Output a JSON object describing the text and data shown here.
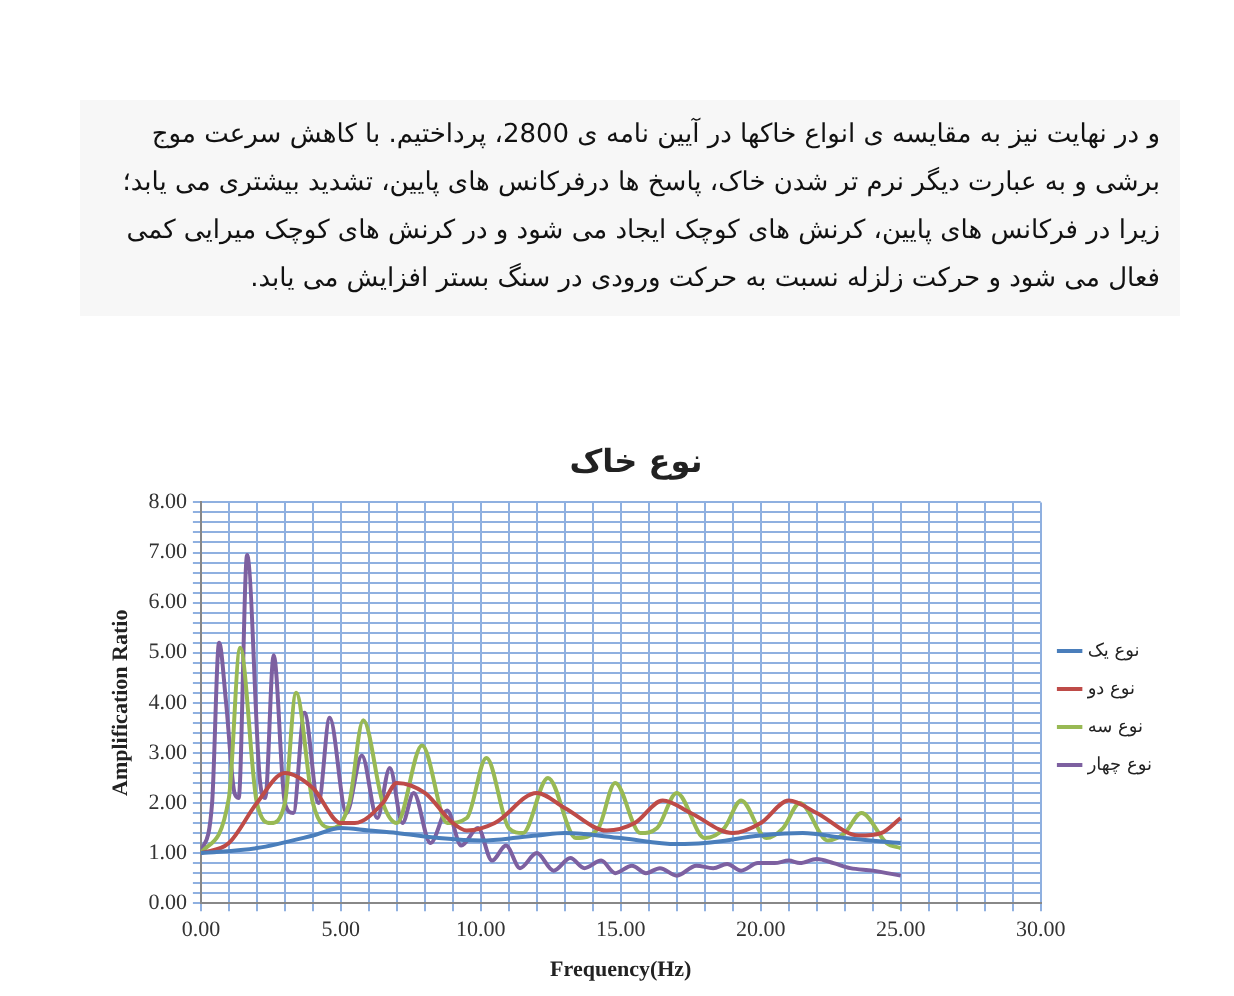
{
  "chart_data": {
    "type": "line",
    "title": "نوع خاک",
    "xlabel": "Frequency(Hz)",
    "ylabel": "Amplification Ratio",
    "annotations": [
      "و در نهایت نیز به مقایسه ی انواع خاکها در آیین نامه ی 2800، پرداختیم. با کاهش سرعت موج برشی و به عبارت دیگر نرم تر شدن خاک، پاسخ ها درفرکانس های پایین، تشدید بیشتری می یابد؛ زیرا در فرکانس های پایین، کرنش های کوچک ایجاد می شود و در کرنش های کوچک میرایی کمی فعال می شود و حرکت زلزله نسبت به حرکت ورودی در سنگ بستر افزایش می یابد."
    ],
    "xlim": [
      0,
      30
    ],
    "ylim": [
      0,
      8
    ],
    "xticks": [
      {
        "value": 0,
        "label": "0.00"
      },
      {
        "value": 1,
        "label": null
      },
      {
        "value": 2,
        "label": null
      },
      {
        "value": 3,
        "label": null
      },
      {
        "value": 4,
        "label": null
      },
      {
        "value": 5,
        "label": "5.00"
      },
      {
        "value": 6,
        "label": null
      },
      {
        "value": 7,
        "label": null
      },
      {
        "value": 8,
        "label": null
      },
      {
        "value": 9,
        "label": null
      },
      {
        "value": 10,
        "label": "10.00"
      },
      {
        "value": 11,
        "label": null
      },
      {
        "value": 12,
        "label": null
      },
      {
        "value": 13,
        "label": null
      },
      {
        "value": 14,
        "label": null
      },
      {
        "value": 15,
        "label": "15.00"
      },
      {
        "value": 16,
        "label": null
      },
      {
        "value": 17,
        "label": null
      },
      {
        "value": 18,
        "label": null
      },
      {
        "value": 19,
        "label": null
      },
      {
        "value": 20,
        "label": "20.00"
      },
      {
        "value": 21,
        "label": null
      },
      {
        "value": 22,
        "label": null
      },
      {
        "value": 23,
        "label": null
      },
      {
        "value": 24,
        "label": null
      },
      {
        "value": 25,
        "label": "25.00"
      },
      {
        "value": 26,
        "label": null
      },
      {
        "value": 27,
        "label": null
      },
      {
        "value": 28,
        "label": null
      },
      {
        "value": 29,
        "label": null
      },
      {
        "value": 30,
        "label": "30.00"
      }
    ],
    "yticks": [
      {
        "value": 0,
        "label": "0.00"
      },
      {
        "value": 0.2,
        "label": null
      },
      {
        "value": 0.4,
        "label": null
      },
      {
        "value": 0.6,
        "label": null
      },
      {
        "value": 0.8,
        "label": null
      },
      {
        "value": 1,
        "label": "1.00"
      },
      {
        "value": 1.2,
        "label": null
      },
      {
        "value": 1.4,
        "label": null
      },
      {
        "value": 1.6,
        "label": null
      },
      {
        "value": 1.8,
        "label": null
      },
      {
        "value": 2,
        "label": "2.00"
      },
      {
        "value": 2.2,
        "label": null
      },
      {
        "value": 2.4,
        "label": null
      },
      {
        "value": 2.6,
        "label": null
      },
      {
        "value": 2.8,
        "label": null
      },
      {
        "value": 3,
        "label": "3.00"
      },
      {
        "value": 3.2,
        "label": null
      },
      {
        "value": 3.4,
        "label": null
      },
      {
        "value": 3.6,
        "label": null
      },
      {
        "value": 3.8,
        "label": null
      },
      {
        "value": 4,
        "label": "4.00"
      },
      {
        "value": 4.2,
        "label": null
      },
      {
        "value": 4.4,
        "label": null
      },
      {
        "value": 4.6,
        "label": null
      },
      {
        "value": 4.8,
        "label": null
      },
      {
        "value": 5,
        "label": "5.00"
      },
      {
        "value": 5.2,
        "label": null
      },
      {
        "value": 5.4,
        "label": null
      },
      {
        "value": 5.6,
        "label": null
      },
      {
        "value": 5.8,
        "label": null
      },
      {
        "value": 6,
        "label": "6.00"
      },
      {
        "value": 6.2,
        "label": null
      },
      {
        "value": 6.4,
        "label": null
      },
      {
        "value": 6.6,
        "label": null
      },
      {
        "value": 6.8,
        "label": null
      },
      {
        "value": 7,
        "label": "7.00"
      },
      {
        "value": 7.2,
        "label": null
      },
      {
        "value": 7.4,
        "label": null
      },
      {
        "value": 7.6,
        "label": null
      },
      {
        "value": 7.8,
        "label": null
      },
      {
        "value": 8,
        "label": "8.00"
      }
    ],
    "grid": true,
    "legend": "right",
    "marker": "none",
    "line_style": "solid",
    "series": [
      {
        "name": "نوع یک",
        "color": "#4a7ebb",
        "x": [
          0,
          2,
          4,
          5,
          6,
          7,
          8.5,
          10,
          12,
          13,
          15,
          17,
          18,
          20,
          21.5,
          23,
          25
        ],
        "values": [
          1,
          1.1,
          1.35,
          1.5,
          1.45,
          1.4,
          1.3,
          1.25,
          1.35,
          1.4,
          1.3,
          1.18,
          1.2,
          1.35,
          1.4,
          1.3,
          1.2
        ]
      },
      {
        "name": "نوع دو",
        "color": "#be4b48",
        "x": [
          0,
          1,
          2,
          3,
          4,
          5,
          5.5,
          6.5,
          7,
          8,
          9,
          9.5,
          10.5,
          12,
          13,
          14.5,
          15.5,
          16.5,
          17.5,
          19,
          20,
          21,
          22,
          23.5,
          24.3,
          25
        ],
        "values": [
          1,
          1.2,
          2,
          2.6,
          2.3,
          1.6,
          1.6,
          2,
          2.4,
          2.2,
          1.6,
          1.45,
          1.6,
          2.2,
          1.9,
          1.45,
          1.6,
          2.05,
          1.8,
          1.4,
          1.6,
          2.05,
          1.8,
          1.35,
          1.4,
          1.7
        ]
      },
      {
        "name": "نوع سه",
        "color": "#98b954",
        "x": [
          0,
          1,
          1.4,
          2,
          2.5,
          3,
          3.4,
          4,
          4.7,
          5.3,
          5.8,
          6.5,
          7,
          7.9,
          8.8,
          9.5,
          10.2,
          11,
          11.5,
          12.4,
          13.4,
          14.2,
          14.8,
          15.7,
          16.3,
          17,
          18,
          18.7,
          19.3,
          20.2,
          20.8,
          21.4,
          22.4,
          23,
          23.6,
          24.5,
          25
        ],
        "values": [
          1,
          2.1,
          5.1,
          2,
          1.6,
          2,
          4.2,
          2,
          1.5,
          2,
          3.65,
          2,
          1.6,
          3.15,
          1.6,
          1.7,
          2.9,
          1.5,
          1.4,
          2.5,
          1.3,
          1.5,
          2.4,
          1.4,
          1.5,
          2.2,
          1.3,
          1.5,
          2.05,
          1.3,
          1.5,
          2,
          1.25,
          1.4,
          1.8,
          1.2,
          1.1
        ]
      },
      {
        "name": "نوع چهار",
        "color": "#7d60a0",
        "x": [
          0,
          0.4,
          0.65,
          0.9,
          1.2,
          1.35,
          1.65,
          2.1,
          2.3,
          2.6,
          3,
          3.3,
          3.7,
          4.2,
          4.6,
          5.2,
          5.75,
          6.3,
          6.75,
          7.2,
          7.6,
          8.2,
          8.8,
          9.3,
          9.9,
          10.4,
          10.9,
          11.4,
          12,
          12.6,
          13.2,
          13.7,
          14.3,
          14.8,
          15.4,
          15.9,
          16.4,
          17,
          17.7,
          18.3,
          18.8,
          19.3,
          19.9,
          20.5,
          21,
          21.4,
          22,
          22.6,
          23.2,
          24,
          25
        ],
        "values": [
          1,
          2,
          5.2,
          4,
          2.2,
          2.1,
          6.95,
          2.5,
          2.1,
          4.95,
          2,
          1.8,
          3.8,
          2,
          3.7,
          1.8,
          2.95,
          1.7,
          2.7,
          1.6,
          2.2,
          1.2,
          1.85,
          1.15,
          1.5,
          0.85,
          1.15,
          0.7,
          1,
          0.65,
          0.9,
          0.7,
          0.85,
          0.6,
          0.75,
          0.6,
          0.7,
          0.55,
          0.75,
          0.7,
          0.78,
          0.65,
          0.8,
          0.8,
          0.85,
          0.8,
          0.88,
          0.8,
          0.7,
          0.65,
          0.55
        ]
      }
    ]
  }
}
